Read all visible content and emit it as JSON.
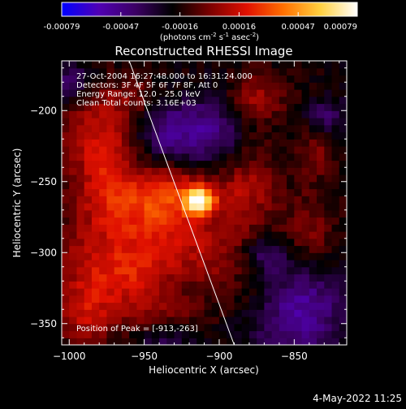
{
  "colorbar": {
    "ticks": [
      "-0.00079",
      "-0.00047",
      "-0.00016",
      "0.00016",
      "0.00047",
      "0.00079"
    ],
    "units_prefix": "(photons cm",
    "units_exp1": "-2",
    "units_mid": " s",
    "units_exp2": "-1",
    "units_mid2": " asec",
    "units_exp3": "-2",
    "units_suffix": ")"
  },
  "plot": {
    "title": "Reconstructed RHESSI Image",
    "annotations": [
      "27-Oct-2004 16:27:48.000 to 16:31:24.000",
      "Detectors: 3F 4F 5F 6F 7F 8F, Att 0",
      "Energy Range: 12.0 - 25.0 keV",
      "Clean     Total counts: 3.16E+03"
    ],
    "peak_label": "Position of Peak = [-913,-263]"
  },
  "footer": {
    "timestamp": "4-May-2022 11:25"
  },
  "colors": {
    "background": "#000000",
    "limb_line": "#ffffff",
    "colormap": [
      "#0000ff",
      "#5000b4",
      "#3c0064",
      "#000000",
      "#7a0000",
      "#e01000",
      "#ff7000",
      "#ffd040",
      "#ffffff"
    ]
  },
  "chart_data": {
    "type": "heatmap",
    "title": "Reconstructed RHESSI Image",
    "xlabel": "Heliocentric X (arcsec)",
    "ylabel": "Heliocentric Y (arcsec)",
    "xlim": [
      -1005,
      -815
    ],
    "ylim": [
      -365,
      -165
    ],
    "xticks": [
      -1000,
      -950,
      -900,
      -850
    ],
    "yticks": [
      -200,
      -250,
      -300,
      -350
    ],
    "xtick_labels": [
      "−1000",
      "−950",
      "−900",
      "−850"
    ],
    "ytick_labels": [
      "−200",
      "−250",
      "−300",
      "−350"
    ],
    "value_range": [
      -0.00079,
      0.00079
    ],
    "peak": [
      -913,
      -263
    ],
    "limb": {
      "points": [
        [
          -960,
          -165
        ],
        [
          -890,
          -365
        ]
      ]
    },
    "sources": [
      {
        "x": -913,
        "y": -263,
        "sx": 6,
        "sy": 6,
        "amp": 0.00079
      },
      {
        "x": -925,
        "y": -258,
        "sx": 22,
        "sy": 14,
        "amp": 0.00032
      },
      {
        "x": -945,
        "y": -275,
        "sx": 20,
        "sy": 18,
        "amp": 0.00028
      },
      {
        "x": -980,
        "y": -215,
        "sx": 18,
        "sy": 22,
        "amp": 0.0003
      },
      {
        "x": -975,
        "y": -255,
        "sx": 16,
        "sy": 20,
        "amp": 0.00026
      },
      {
        "x": -985,
        "y": -310,
        "sx": 20,
        "sy": 26,
        "amp": 0.00026
      },
      {
        "x": -990,
        "y": -345,
        "sx": 14,
        "sy": 14,
        "amp": 0.00022
      },
      {
        "x": -955,
        "y": -315,
        "sx": 18,
        "sy": 16,
        "amp": 0.00026
      },
      {
        "x": -905,
        "y": -300,
        "sx": 26,
        "sy": 18,
        "amp": 0.00024
      },
      {
        "x": -880,
        "y": -255,
        "sx": 14,
        "sy": 22,
        "amp": 0.00022
      },
      {
        "x": -875,
        "y": -190,
        "sx": 14,
        "sy": 12,
        "amp": 0.00024
      },
      {
        "x": -835,
        "y": -225,
        "sx": 10,
        "sy": 16,
        "amp": 0.00018
      },
      {
        "x": -840,
        "y": -285,
        "sx": 12,
        "sy": 20,
        "amp": 0.00018
      },
      {
        "x": -935,
        "y": -345,
        "sx": 20,
        "sy": 12,
        "amp": 0.00016
      },
      {
        "x": -870,
        "y": -335,
        "sx": 16,
        "sy": 14,
        "amp": 0.00014
      },
      {
        "x": -955,
        "y": -190,
        "sx": 12,
        "sy": 10,
        "amp": 0.00012
      }
    ],
    "negative_regions": [
      {
        "x": -850,
        "y": -340,
        "sx": 22,
        "sy": 22,
        "amp": -0.0004
      },
      {
        "x": -935,
        "y": -215,
        "sx": 14,
        "sy": 14,
        "amp": -0.0003
      },
      {
        "x": -905,
        "y": -215,
        "sx": 14,
        "sy": 18,
        "amp": -0.00028
      },
      {
        "x": -830,
        "y": -205,
        "sx": 10,
        "sy": 10,
        "amp": -0.00025
      },
      {
        "x": -1000,
        "y": -180,
        "sx": 10,
        "sy": 10,
        "amp": -0.00025
      },
      {
        "x": -935,
        "y": -360,
        "sx": 14,
        "sy": 8,
        "amp": -0.0002
      },
      {
        "x": -870,
        "y": -300,
        "sx": 12,
        "sy": 10,
        "amp": -0.00024
      }
    ]
  }
}
